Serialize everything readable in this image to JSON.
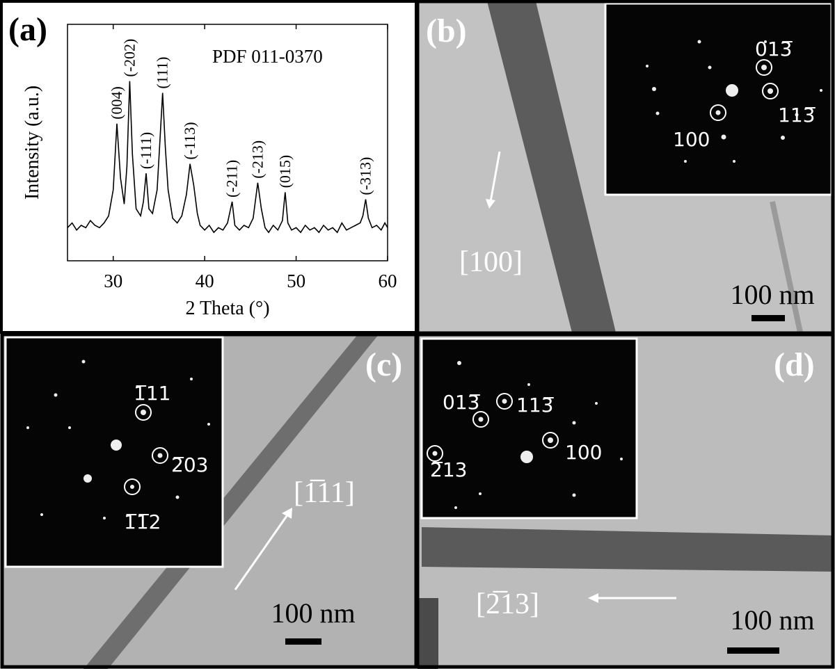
{
  "chart_data": {
    "type": "line",
    "panel_label": "(a)",
    "annotation": "PDF 011-0370",
    "x_label": "2 Theta (°)",
    "y_label": "Intensity (a.u.)",
    "color": "#000000",
    "xlim": [
      25,
      60
    ],
    "xticks": [
      30,
      40,
      50,
      60
    ],
    "ylim": [
      0,
      100
    ],
    "x": [
      25,
      25.5,
      26,
      26.5,
      27,
      27.5,
      28,
      28.5,
      29,
      29.5,
      30,
      30.4,
      30.8,
      31.2,
      31.5,
      31.8,
      32.1,
      32.5,
      33,
      33.3,
      33.6,
      33.9,
      34.3,
      34.8,
      35.1,
      35.4,
      35.7,
      36,
      36.5,
      37,
      37.5,
      38,
      38.4,
      38.8,
      39.2,
      39.5,
      40,
      40.5,
      41,
      41.5,
      42,
      42.5,
      43,
      43.3,
      43.8,
      44.3,
      44.8,
      45.3,
      45.8,
      46.2,
      46.6,
      47,
      47.5,
      48,
      48.5,
      48.8,
      49.1,
      49.5,
      50,
      50.5,
      51,
      51.5,
      52,
      52.5,
      53,
      53.5,
      54,
      54.5,
      55,
      55.5,
      56,
      56.5,
      57,
      57.3,
      57.6,
      57.9,
      58.3,
      58.8,
      59.3,
      59.7,
      60
    ],
    "values": [
      14,
      16,
      13,
      15,
      14,
      17,
      15,
      14,
      16,
      19,
      30,
      58,
      35,
      24,
      40,
      76,
      45,
      22,
      19,
      25,
      37,
      22,
      20,
      30,
      50,
      71,
      48,
      30,
      18,
      16,
      19,
      28,
      41,
      32,
      20,
      15,
      13,
      15,
      12,
      14,
      13,
      16,
      25,
      15,
      13,
      15,
      14,
      18,
      33,
      22,
      14,
      12,
      15,
      13,
      17,
      29,
      16,
      13,
      14,
      12,
      15,
      13,
      14,
      12,
      15,
      13,
      14,
      12,
      16,
      13,
      14,
      15,
      16,
      19,
      26,
      18,
      14,
      15,
      13,
      16,
      14
    ],
    "peak_labels": [
      {
        "text": "(004)",
        "x": 30.4
      },
      {
        "text": "(-202)",
        "x": 31.8
      },
      {
        "text": "(-111)",
        "x": 33.6
      },
      {
        "text": "(111)",
        "x": 35.4
      },
      {
        "text": "(-113)",
        "x": 38.4
      },
      {
        "text": "(-211)",
        "x": 43
      },
      {
        "text": "(-213)",
        "x": 45.8
      },
      {
        "text": "(015)",
        "x": 48.8
      },
      {
        "text": "(-313)",
        "x": 57.6
      }
    ]
  },
  "panels": [
    {
      "label": "(b)",
      "direction": "[100]",
      "scale_bar": "100 nm",
      "spots": [
        "013̅",
        "113̅",
        "100"
      ]
    },
    {
      "label": "(c)",
      "direction": "[1̅11]",
      "scale_bar": "100 nm",
      "spots": [
        "1̅11",
        "2̅03",
        "1̅1̅2"
      ]
    },
    {
      "label": "(d)",
      "direction": "[2̅13]",
      "scale_bar": "100 nm",
      "spots": [
        "013̅",
        "113̅",
        "100",
        "2̅13"
      ]
    }
  ]
}
